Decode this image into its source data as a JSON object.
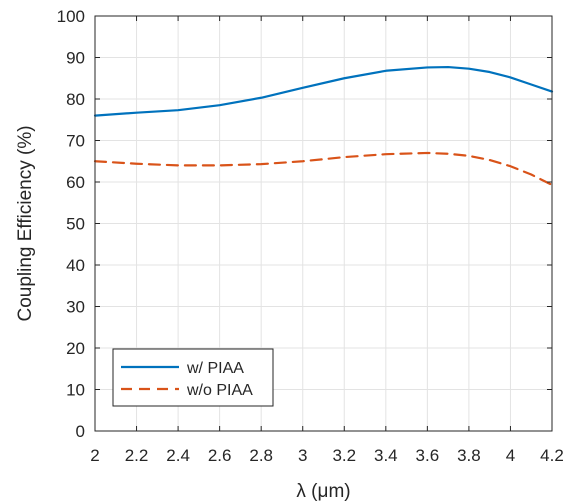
{
  "chart_data": {
    "type": "line",
    "title": "",
    "xlabel": "λ (μm)",
    "ylabel": "Coupling Efficiency (%)",
    "xlim": [
      2,
      4.2
    ],
    "ylim": [
      0,
      100
    ],
    "xticks": [
      2,
      2.2,
      2.4,
      2.6,
      2.8,
      3,
      3.2,
      3.4,
      3.6,
      3.8,
      4,
      4.2
    ],
    "xtick_labels": [
      "2",
      "2.2",
      "2.4",
      "2.6",
      "2.8",
      "3",
      "3.2",
      "3.4",
      "3.6",
      "3.8",
      "4",
      "4.2"
    ],
    "yticks": [
      0,
      10,
      20,
      30,
      40,
      50,
      60,
      70,
      80,
      90,
      100
    ],
    "ytick_labels": [
      "0",
      "10",
      "20",
      "30",
      "40",
      "50",
      "60",
      "70",
      "80",
      "90",
      "100"
    ],
    "grid": true,
    "legend_position": "bottom-left",
    "x": [
      2.0,
      2.2,
      2.4,
      2.6,
      2.8,
      3.0,
      3.2,
      3.4,
      3.6,
      3.7,
      3.8,
      3.9,
      4.0,
      4.1,
      4.2
    ],
    "series": [
      {
        "name": "w/ PIAA",
        "color": "#0072BD",
        "style": "solid",
        "values": [
          76,
          76.7,
          77.3,
          78.5,
          80.3,
          82.7,
          85.0,
          86.8,
          87.6,
          87.7,
          87.3,
          86.5,
          85.2,
          83.5,
          81.8
        ]
      },
      {
        "name": "w/o PIAA",
        "color": "#D95319",
        "style": "dashed",
        "values": [
          65,
          64.4,
          64.0,
          64.0,
          64.3,
          65.0,
          66.0,
          66.7,
          67.0,
          66.8,
          66.3,
          65.3,
          63.8,
          61.8,
          59.3
        ]
      }
    ]
  }
}
